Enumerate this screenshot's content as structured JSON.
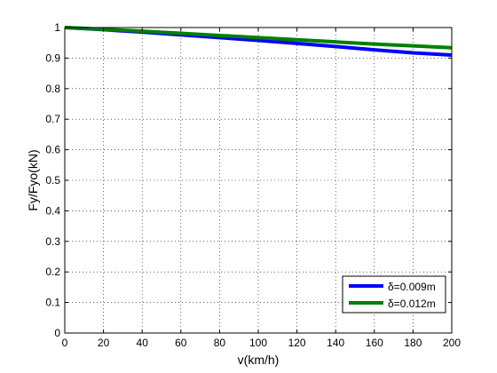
{
  "chart_data": {
    "type": "line",
    "title": "",
    "xlabel": "v(km/h)",
    "ylabel": "Fy/Fyo(kN)",
    "xlim": [
      0,
      200
    ],
    "ylim": [
      0,
      1
    ],
    "grid": true,
    "grid_style": "dotted",
    "legend_position": "bottom-right",
    "x_ticks": [
      "0",
      "20",
      "40",
      "60",
      "80",
      "100",
      "120",
      "140",
      "160",
      "180",
      "200"
    ],
    "y_ticks": [
      "0",
      "0.1",
      "0.2",
      "0.3",
      "0.4",
      "0.5",
      "0.6",
      "0.7",
      "0.8",
      "0.9",
      "1"
    ],
    "x": [
      0,
      20,
      40,
      60,
      80,
      100,
      120,
      140,
      160,
      180,
      200
    ],
    "series": [
      {
        "name": "δ=0.009m",
        "color": "#0000ff",
        "values": [
          1.0,
          0.993,
          0.985,
          0.976,
          0.967,
          0.958,
          0.948,
          0.938,
          0.927,
          0.917,
          0.91
        ]
      },
      {
        "name": "δ=0.012m",
        "color": "#008000",
        "values": [
          1.0,
          0.994,
          0.988,
          0.981,
          0.974,
          0.967,
          0.96,
          0.953,
          0.946,
          0.94,
          0.934
        ]
      }
    ]
  }
}
